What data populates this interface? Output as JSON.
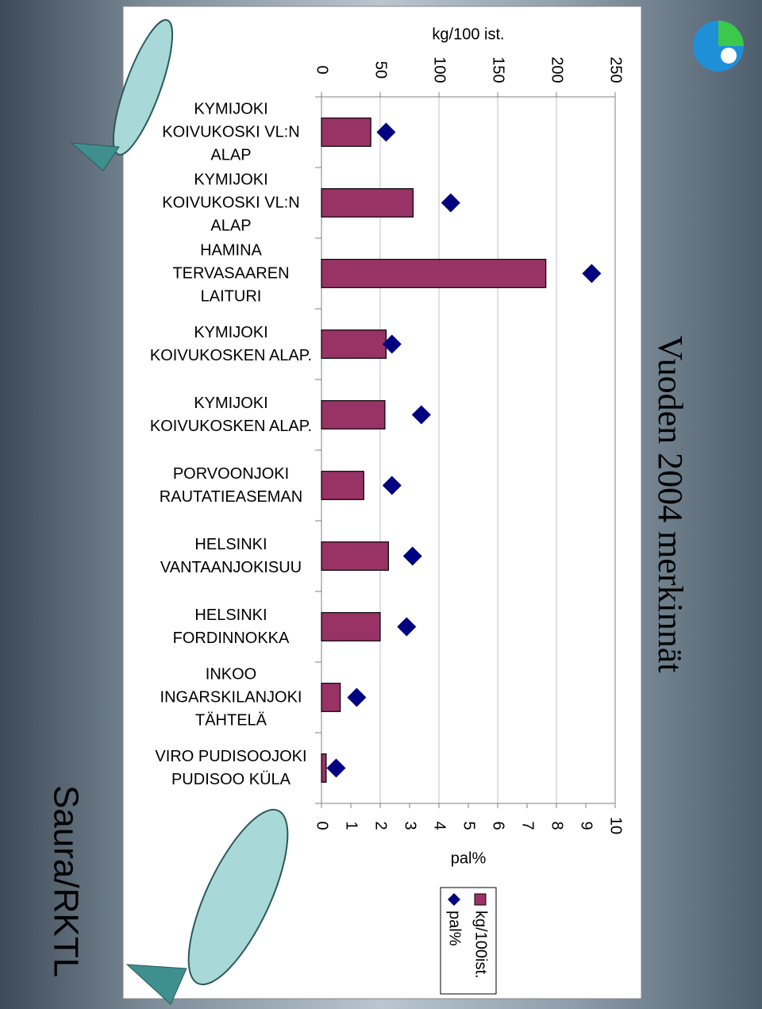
{
  "chart_data": {
    "type": "bar",
    "orientation": "vertical-rotated",
    "title": "Vuoden 2004 merkinnät",
    "ylabel": "kg/100 ist.",
    "y2label": "pal%",
    "categories": [
      "KYMIJOKI KOIVUKOSKI VL:N ALAP",
      "KYMIJOKI KOIVUKOSKI VL:N ALAP",
      "HAMINA TERVASAAREN LAITURI",
      "KYMIJOKI KOIVUKOSKEN ALAP.",
      "KYMIJOKI KOIVUKOSKEN ALAP.",
      "PORVOONJOKI RAUTATIEASEMAN",
      "HELSINKI VANTAANJOKISUU",
      "HELSINKI FORDINNOKKA",
      "INKOO INGARSKILANJOKI TÄHTELÄ",
      "VIRO PUDISOOJOKI PUDISOO KÜLA"
    ],
    "series": [
      {
        "name": "kg/100ist.",
        "color": "#993366",
        "values": [
          42,
          78,
          191,
          55,
          54,
          36,
          57,
          50,
          16,
          4
        ]
      },
      {
        "name": "pal%",
        "color": "#000080",
        "axis": "y2",
        "marker": "diamond",
        "values": [
          2.2,
          4.4,
          9.2,
          2.4,
          3.4,
          2.4,
          3.1,
          2.9,
          1.2,
          0.5
        ]
      }
    ],
    "ylim": [
      0,
      250
    ],
    "yticks": [
      0,
      50,
      100,
      150,
      200,
      250
    ],
    "y2lim": [
      0,
      10
    ],
    "y2ticks": [
      0,
      1,
      2,
      3,
      4,
      5,
      6,
      7,
      8,
      9,
      10
    ],
    "grid": true
  },
  "footer": {
    "credit": "Saura/RKTL"
  }
}
